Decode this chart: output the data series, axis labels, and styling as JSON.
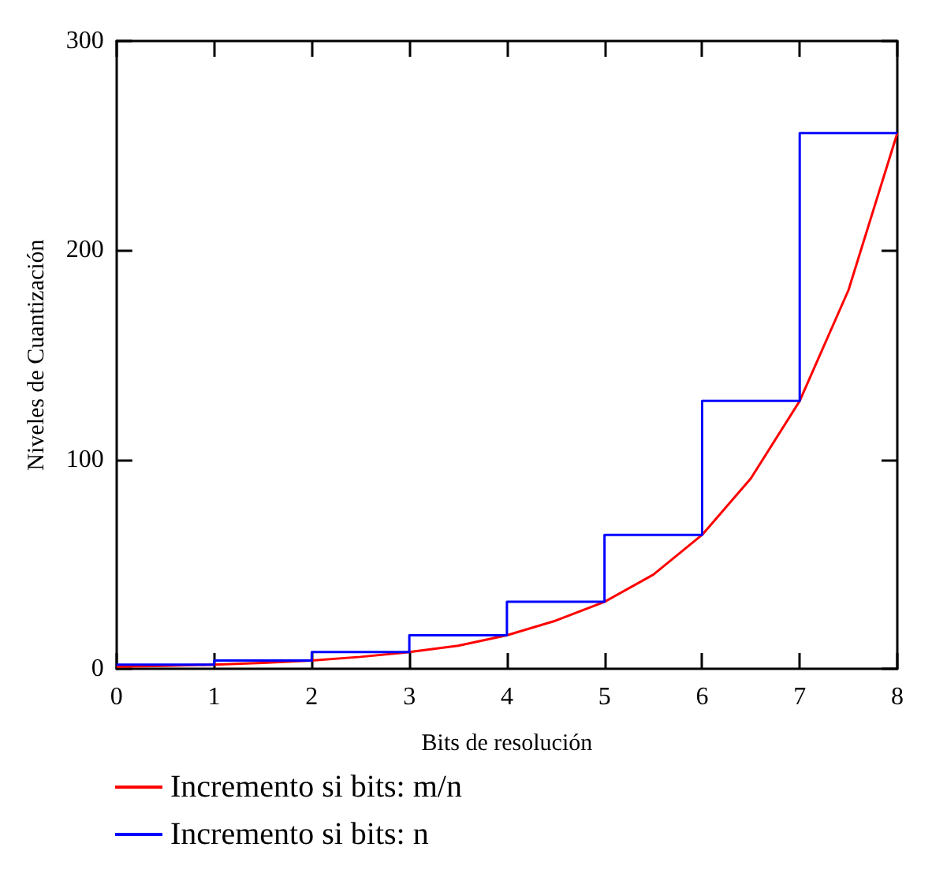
{
  "chart_data": {
    "type": "line",
    "xlabel": "Bits de resolución",
    "ylabel": "Niveles de Cuantización",
    "xlim": [
      0,
      8
    ],
    "ylim": [
      0,
      300
    ],
    "xticks": [
      0,
      1,
      2,
      3,
      4,
      5,
      6,
      7,
      8
    ],
    "yticks": [
      0,
      100,
      200,
      300
    ],
    "grid": false,
    "legend": "bottom",
    "marker": "none",
    "line_style": "solid",
    "series": [
      {
        "name": "Incremento si bits: m/n",
        "type": "line",
        "color": "#ff0000",
        "x": [
          0,
          0.5,
          1,
          1.5,
          2,
          2.5,
          3,
          3.5,
          4,
          4.5,
          5,
          5.5,
          6,
          6.5,
          7,
          7.5,
          8
        ],
        "values": [
          1,
          1.4,
          2,
          2.8,
          4,
          5.7,
          8,
          11,
          16,
          23,
          32,
          45,
          64,
          91,
          128,
          181,
          256
        ]
      },
      {
        "name": "Incremento si bits: n",
        "type": "step",
        "color": "#0000ff",
        "x": [
          0,
          1,
          2,
          3,
          4,
          5,
          6,
          7,
          8
        ],
        "values": [
          2,
          4,
          8,
          16,
          32,
          64,
          128,
          256,
          256
        ]
      }
    ]
  }
}
